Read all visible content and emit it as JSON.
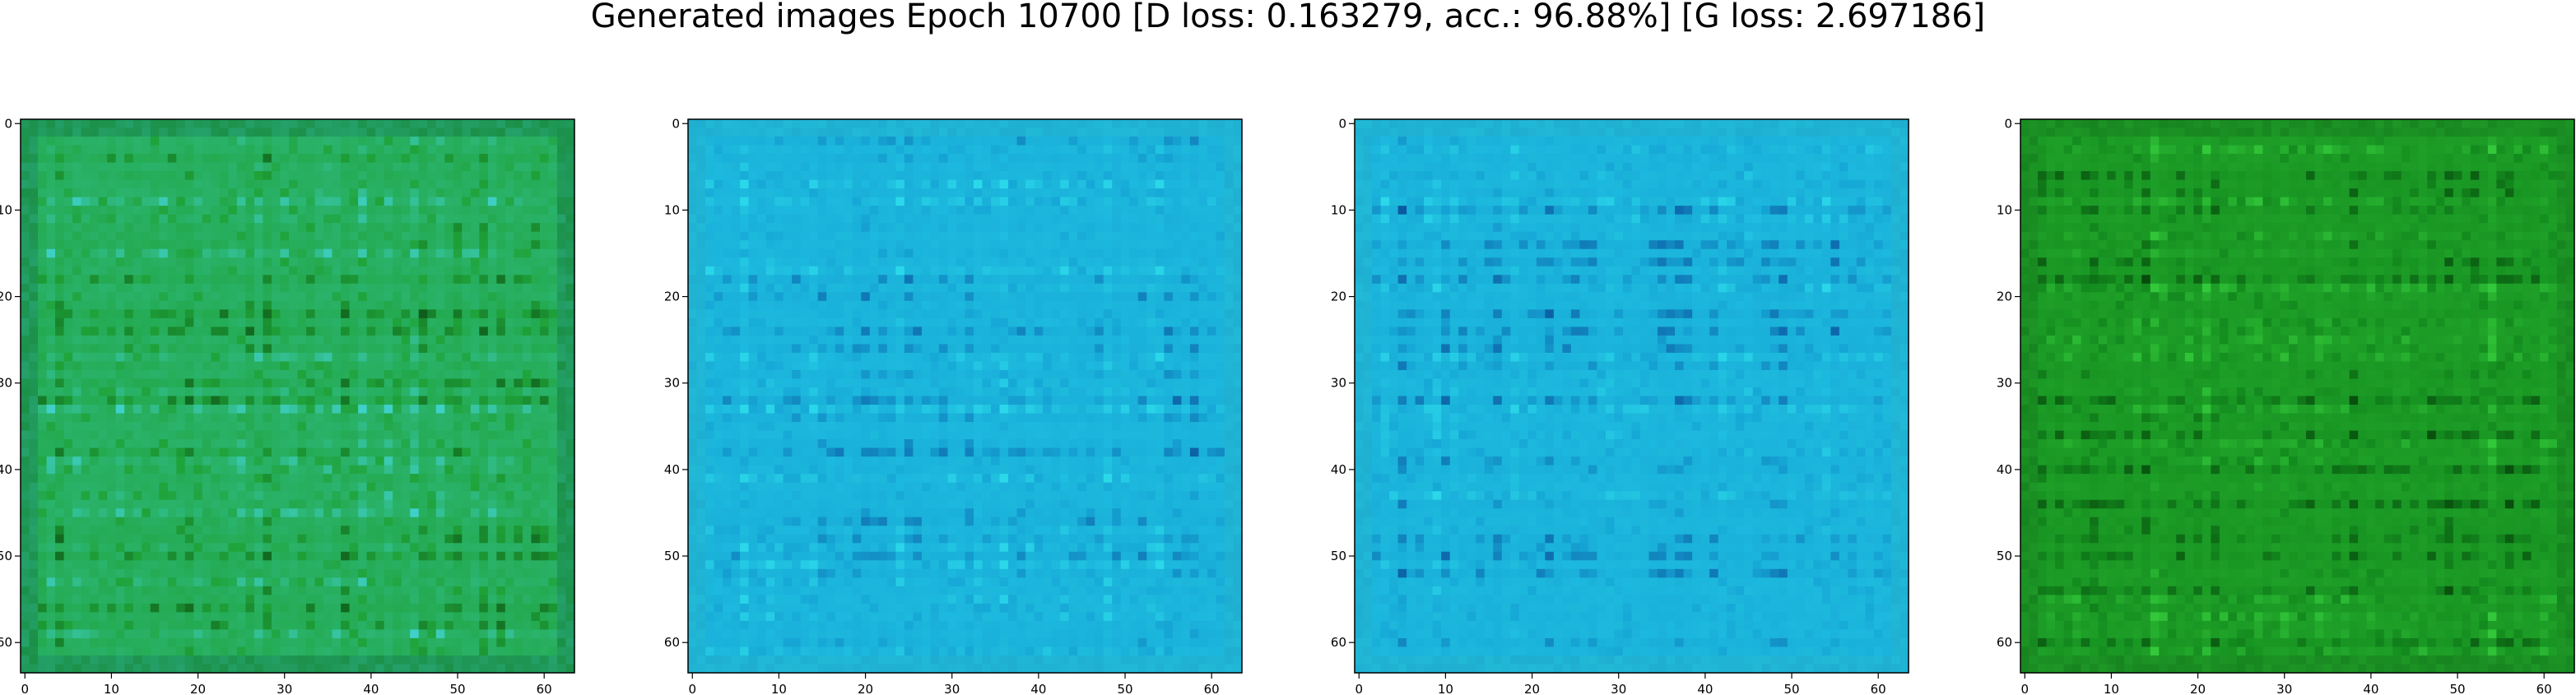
{
  "figure": {
    "title": "Generated images Epoch 10700 [D loss: 0.163279, acc.: 96.88%] [G loss: 2.697186]"
  },
  "chart_data": {
    "type": "heatmap",
    "grid": false,
    "legend": "none",
    "panels": [
      {
        "name": "sample-1",
        "palette": "green-cyan",
        "colors": {
          "base": "#1fa33a",
          "dark": "#0a4a12",
          "light": "#3fd0c8",
          "frame": "#0f7a1c"
        },
        "x_ticks": [
          0,
          10,
          20,
          30,
          40,
          50,
          60
        ],
        "y_ticks": [
          0,
          10,
          20,
          30,
          40,
          50,
          60
        ],
        "xlim": [
          -0.5,
          63.5
        ],
        "ylim": [
          63.5,
          -0.5
        ]
      },
      {
        "name": "sample-2",
        "palette": "cyan",
        "colors": {
          "base": "#16a8d6",
          "dark": "#0a4f9a",
          "light": "#2bd8ea",
          "frame": "#1aa0c8"
        },
        "x_ticks": [
          0,
          10,
          20,
          30,
          40,
          50,
          60
        ],
        "y_ticks": [
          0,
          10,
          20,
          30,
          40,
          50,
          60
        ],
        "xlim": [
          -0.5,
          63.5
        ],
        "ylim": [
          63.5,
          -0.5
        ]
      },
      {
        "name": "sample-3",
        "palette": "cyan",
        "colors": {
          "base": "#16a8d6",
          "dark": "#0a4f9a",
          "light": "#2bd8ea",
          "frame": "#1aa0c8"
        },
        "x_ticks": [
          0,
          10,
          20,
          30,
          40,
          50,
          60
        ],
        "y_ticks": [
          0,
          10,
          20,
          30,
          40,
          50,
          60
        ],
        "xlim": [
          -0.5,
          63.5
        ],
        "ylim": [
          63.5,
          -0.5
        ]
      },
      {
        "name": "sample-4",
        "palette": "dark-green",
        "colors": {
          "base": "#138a1e",
          "dark": "#053d08",
          "light": "#33c83a",
          "frame": "#0d6e16"
        },
        "x_ticks": [
          0,
          10,
          20,
          30,
          40,
          50,
          60
        ],
        "y_ticks": [
          0,
          10,
          20,
          30,
          40,
          50,
          60
        ],
        "xlim": [
          -0.5,
          63.5
        ],
        "ylim": [
          63.5,
          -0.5
        ]
      }
    ]
  }
}
